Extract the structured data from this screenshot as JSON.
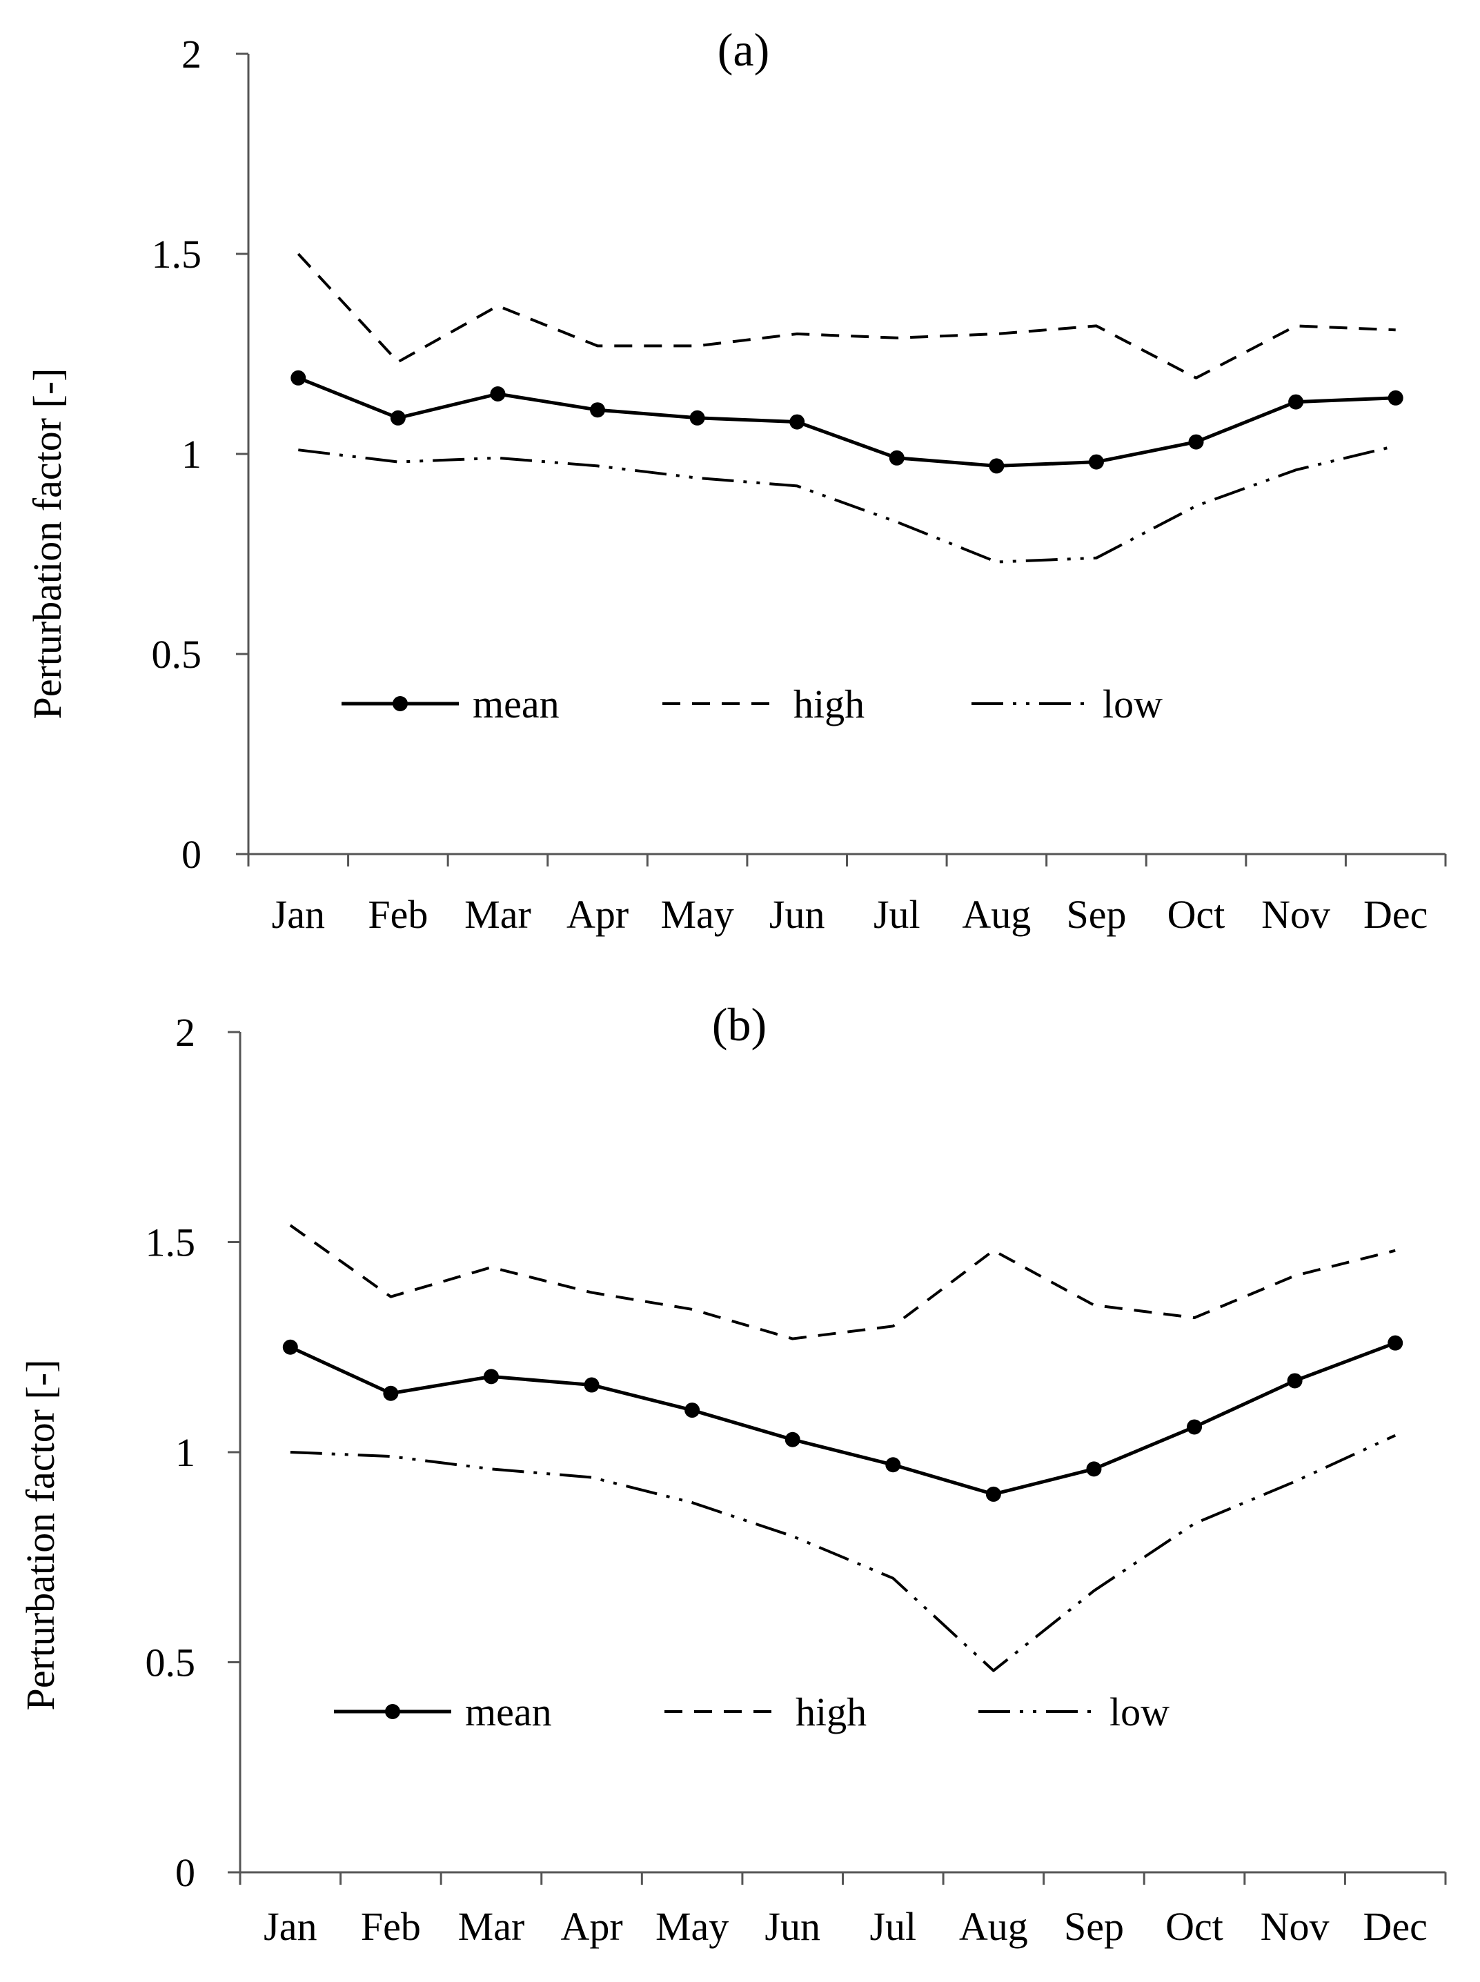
{
  "chart_data": [
    {
      "type": "line",
      "title": "(a)",
      "xlabel": "",
      "ylabel": "Perturbation factor [-]",
      "ylim": [
        0,
        2
      ],
      "yticks": [
        "0",
        "0.5",
        "1",
        "1.5",
        "2"
      ],
      "categories": [
        "Jan",
        "Feb",
        "Mar",
        "Apr",
        "May",
        "Jun",
        "Jul",
        "Aug",
        "Sep",
        "Oct",
        "Nov",
        "Dec"
      ],
      "legend_position": "lower-center",
      "series": [
        {
          "name": "mean",
          "style": "solid-markers",
          "values": [
            1.19,
            1.09,
            1.15,
            1.11,
            1.09,
            1.08,
            0.99,
            0.97,
            0.98,
            1.03,
            1.13,
            1.14
          ]
        },
        {
          "name": "high",
          "style": "dashed",
          "values": [
            1.5,
            1.23,
            1.37,
            1.27,
            1.27,
            1.3,
            1.29,
            1.3,
            1.32,
            1.19,
            1.32,
            1.31
          ]
        },
        {
          "name": "low",
          "style": "dash-dot-dot",
          "values": [
            1.01,
            0.98,
            0.99,
            0.97,
            0.94,
            0.92,
            0.83,
            0.73,
            0.74,
            0.87,
            0.96,
            1.02
          ]
        }
      ]
    },
    {
      "type": "line",
      "title": "(b)",
      "xlabel": "",
      "ylabel": "Perturbation factor [-]",
      "ylim": [
        0,
        2
      ],
      "yticks": [
        "0",
        "0.5",
        "1",
        "1.5",
        "2"
      ],
      "categories": [
        "Jan",
        "Feb",
        "Mar",
        "Apr",
        "May",
        "Jun",
        "Jul",
        "Aug",
        "Sep",
        "Oct",
        "Nov",
        "Dec"
      ],
      "legend_position": "lower-center",
      "series": [
        {
          "name": "mean",
          "style": "solid-markers",
          "values": [
            1.25,
            1.14,
            1.18,
            1.16,
            1.1,
            1.03,
            0.97,
            0.9,
            0.96,
            1.06,
            1.17,
            1.26
          ]
        },
        {
          "name": "high",
          "style": "dashed",
          "values": [
            1.54,
            1.37,
            1.44,
            1.38,
            1.34,
            1.27,
            1.3,
            1.48,
            1.35,
            1.32,
            1.42,
            1.48
          ]
        },
        {
          "name": "low",
          "style": "dash-dot-dot",
          "values": [
            1.0,
            0.99,
            0.96,
            0.94,
            0.88,
            0.8,
            0.7,
            0.48,
            0.67,
            0.83,
            0.93,
            1.04
          ]
        }
      ]
    }
  ]
}
